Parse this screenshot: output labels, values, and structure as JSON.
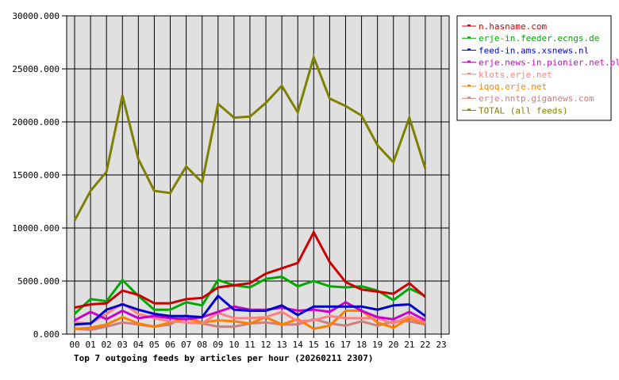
{
  "chart_data": {
    "type": "line",
    "title": "Top 7 outgoing feeds by articles per hour (20260211 2307)",
    "xlabel": "",
    "ylabel": "",
    "ylim": [
      0,
      30000
    ],
    "yticks": [
      0,
      5000,
      10000,
      15000,
      20000,
      25000,
      30000
    ],
    "ytick_labels": [
      "0.000",
      "5000.000",
      "10000.000",
      "15000.000",
      "20000.000",
      "25000.000",
      "30000.000"
    ],
    "categories": [
      "00",
      "01",
      "02",
      "03",
      "04",
      "05",
      "06",
      "07",
      "08",
      "09",
      "10",
      "11",
      "12",
      "13",
      "14",
      "15",
      "16",
      "17",
      "18",
      "19",
      "20",
      "21",
      "22",
      "23"
    ],
    "grid": true,
    "legend_position": "right-top",
    "background": "#e0e0e0",
    "series": [
      {
        "name": "n.hasname.com",
        "color": "#cc0000",
        "values": [
          2500,
          2800,
          2900,
          4100,
          3700,
          2900,
          2900,
          3300,
          3400,
          4400,
          4600,
          4800,
          5700,
          6200,
          6700,
          9600,
          6800,
          4900,
          4200,
          4000,
          3800,
          4800,
          3500
        ]
      },
      {
        "name": "erje-in.feeder.ecngs.de",
        "color": "#00aa00",
        "values": [
          1900,
          3300,
          3100,
          5100,
          3600,
          2300,
          2300,
          3000,
          2700,
          5100,
          4600,
          4400,
          5200,
          5400,
          4500,
          5000,
          4500,
          4400,
          4500,
          4100,
          3200,
          4300,
          3600
        ]
      },
      {
        "name": "feed-in.ams.xsnews.nl",
        "color": "#0000cc",
        "values": [
          900,
          1000,
          2300,
          2800,
          2300,
          1900,
          1700,
          1700,
          1600,
          3600,
          2300,
          2200,
          2200,
          2700,
          1800,
          2600,
          2600,
          2600,
          2600,
          2300,
          2700,
          2800,
          1700
        ]
      },
      {
        "name": "erje.news-in.pionier.net.pl",
        "color": "#cc00cc",
        "values": [
          1300,
          2100,
          1400,
          2200,
          1500,
          1700,
          1500,
          1400,
          1600,
          2100,
          2600,
          2300,
          2300,
          2500,
          2200,
          2300,
          2100,
          3000,
          2200,
          1600,
          1400,
          2100,
          1300
        ]
      },
      {
        "name": "klots.erje.net",
        "color": "#ff8080",
        "values": [
          1100,
          1000,
          1900,
          2900,
          1900,
          1500,
          1200,
          1100,
          1000,
          2000,
          1500,
          1500,
          1600,
          2100,
          1200,
          1300,
          1700,
          1500,
          1500,
          1500,
          1000,
          1700,
          1100
        ]
      },
      {
        "name": "iqoq.erje.net",
        "color": "#ff8000",
        "values": [
          500,
          600,
          900,
          1600,
          1000,
          700,
          1100,
          1500,
          1100,
          1300,
          1200,
          1000,
          1600,
          900,
          1400,
          500,
          800,
          2200,
          2200,
          1100,
          600,
          1500,
          1000
        ]
      },
      {
        "name": "erje.nntp.giganews.com",
        "color": "#cc8080",
        "values": [
          500,
          400,
          700,
          1100,
          900,
          700,
          900,
          1800,
          1000,
          700,
          700,
          1000,
          1100,
          900,
          900,
          1400,
          1000,
          800,
          1200,
          800,
          1200,
          1200,
          900
        ]
      },
      {
        "name": "TOTAL (all feeds)",
        "color": "#808000",
        "values": [
          10700,
          13500,
          15300,
          22500,
          16500,
          13500,
          13300,
          15800,
          14300,
          21700,
          20400,
          20500,
          21800,
          23400,
          20900,
          26100,
          22200,
          21500,
          20600,
          17800,
          16200,
          20400,
          15600
        ]
      }
    ]
  }
}
